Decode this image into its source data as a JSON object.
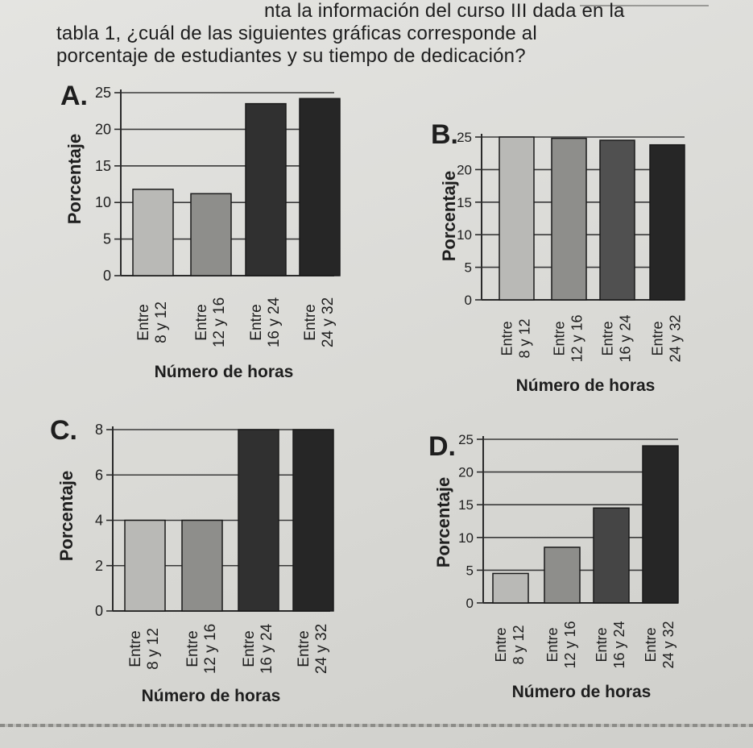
{
  "question": {
    "line1": "nta la información del curso III dada en la",
    "line2": "tabla 1, ¿cuál de las siguientes gráficas corresponde al",
    "line3": "porcentaje de estudiantes y su tiempo de dedicación?"
  },
  "chart_data": [
    {
      "letter": "A.",
      "type": "bar",
      "ylabel": "Porcentaje",
      "xlabel": "Número de horas",
      "ylim": [
        0,
        25
      ],
      "yticks": [
        "0",
        "5",
        "10",
        "15",
        "20",
        "25"
      ],
      "categories": [
        [
          "Entre",
          "8 y 12"
        ],
        [
          "Entre",
          "12 y 16"
        ],
        [
          "Entre",
          "16 y 24"
        ],
        [
          "Entre",
          "24 y 32"
        ]
      ],
      "values": [
        11.8,
        11.2,
        23.5,
        24.2
      ],
      "colors": [
        "#b9b9b6",
        "#8e8e8b",
        "#303030",
        "#262626"
      ]
    },
    {
      "letter": "B.",
      "type": "bar",
      "ylabel": "Porcentaje",
      "xlabel": "Número de horas",
      "ylim": [
        0,
        25
      ],
      "yticks": [
        "0",
        "5",
        "10",
        "15",
        "20",
        "25"
      ],
      "categories": [
        [
          "Entre",
          "8 y 12"
        ],
        [
          "Entre",
          "12 y 16"
        ],
        [
          "Entre",
          "16 y 24"
        ],
        [
          "Entre",
          "24 y 32"
        ]
      ],
      "values": [
        25,
        24.8,
        24.5,
        23.8
      ],
      "colors": [
        "#b9b9b6",
        "#8e8e8b",
        "#505050",
        "#262626"
      ]
    },
    {
      "letter": "C.",
      "type": "bar",
      "ylabel": "Porcentaje",
      "xlabel": "Número de horas",
      "ylim": [
        0,
        8
      ],
      "yticks": [
        "0",
        "2",
        "4",
        "6",
        "8"
      ],
      "categories": [
        [
          "Entre",
          "8 y 12"
        ],
        [
          "Entre",
          "12 y 16"
        ],
        [
          "Entre",
          "16 y 24"
        ],
        [
          "Entre",
          "24 y 32"
        ]
      ],
      "values": [
        4,
        4,
        8,
        8
      ],
      "colors": [
        "#b9b9b6",
        "#8e8e8b",
        "#303030",
        "#262626"
      ]
    },
    {
      "letter": "D.",
      "type": "bar",
      "ylabel": "Porcentaje",
      "xlabel": "Número de horas",
      "ylim": [
        0,
        25
      ],
      "yticks": [
        "0",
        "5",
        "10",
        "15",
        "20",
        "25"
      ],
      "categories": [
        [
          "Entre",
          "8 y 12"
        ],
        [
          "Entre",
          "12 y 16"
        ],
        [
          "Entre",
          "16 y 24"
        ],
        [
          "Entre",
          "24 y 32"
        ]
      ],
      "values": [
        4.5,
        8.5,
        14.5,
        24
      ],
      "colors": [
        "#b9b9b6",
        "#8e8e8b",
        "#454545",
        "#262626"
      ]
    }
  ]
}
